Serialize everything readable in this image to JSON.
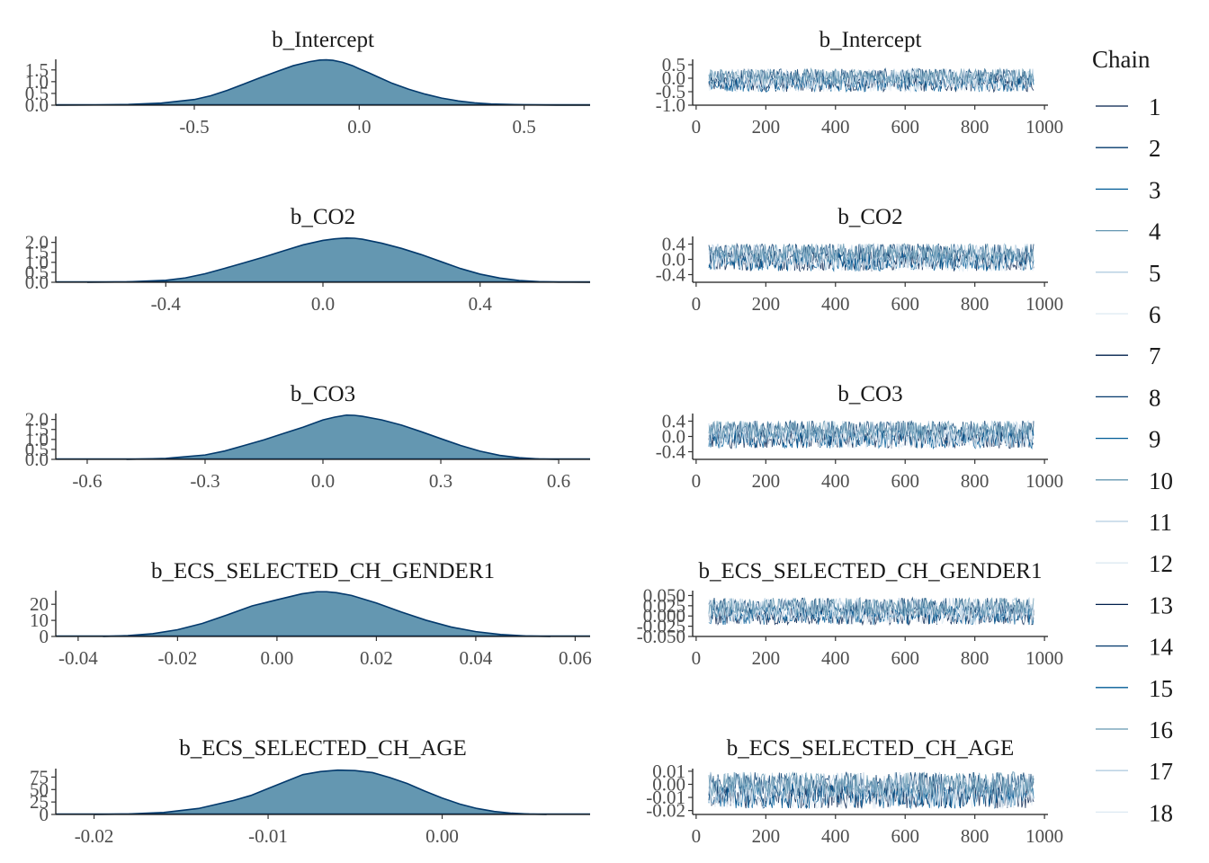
{
  "legend": {
    "title": "Chain",
    "items": [
      "1",
      "2",
      "3",
      "4",
      "5",
      "6",
      "7",
      "8",
      "9",
      "10",
      "11",
      "12",
      "13",
      "14",
      "15",
      "16",
      "17",
      "18"
    ],
    "colors": [
      "#011f4b",
      "#03396c",
      "#005b96",
      "#6497b1",
      "#b3cde0",
      "#dde9f2",
      "#011f4b",
      "#03396c",
      "#005b96",
      "#6497b1",
      "#b3cde0",
      "#dde9f2",
      "#011f4b",
      "#03396c",
      "#005b96",
      "#6497b1",
      "#b3cde0",
      "#dde9f2"
    ]
  },
  "colors": {
    "density_fill": "#6497b1",
    "density_line": "#03396c"
  },
  "chart_data": [
    {
      "type": "area",
      "panel": "density",
      "title": "b_Intercept",
      "xlim": [
        -0.92,
        0.7
      ],
      "ylim": [
        0,
        1.95
      ],
      "xticks": [
        -0.5,
        0.0,
        0.5
      ],
      "xtick_labels": [
        "-0.5",
        "0.0",
        "0.5"
      ],
      "yticks": [
        0,
        0.5,
        1.0,
        1.5
      ],
      "ytick_labels": [
        "0.0",
        "0.5",
        "1.0",
        "1.5"
      ],
      "x": [
        -0.92,
        -0.8,
        -0.7,
        -0.6,
        -0.5,
        -0.45,
        -0.4,
        -0.35,
        -0.3,
        -0.25,
        -0.2,
        -0.15,
        -0.12,
        -0.1,
        -0.08,
        -0.05,
        -0.02,
        0.0,
        0.03,
        0.06,
        0.1,
        0.15,
        0.2,
        0.25,
        0.3,
        0.35,
        0.4,
        0.5,
        0.6,
        0.7
      ],
      "y": [
        0.0,
        0.01,
        0.03,
        0.09,
        0.24,
        0.4,
        0.63,
        0.9,
        1.17,
        1.43,
        1.68,
        1.85,
        1.92,
        1.93,
        1.91,
        1.82,
        1.68,
        1.55,
        1.37,
        1.18,
        0.93,
        0.68,
        0.47,
        0.3,
        0.18,
        0.1,
        0.05,
        0.015,
        0.004,
        0.0
      ]
    },
    {
      "type": "line",
      "panel": "trace",
      "title": "b_Intercept",
      "xlim": [
        -10,
        1010
      ],
      "ylim": [
        -1.0,
        0.7
      ],
      "xticks": [
        0,
        200,
        400,
        600,
        800,
        1000
      ],
      "xtick_labels": [
        "0",
        "200",
        "400",
        "600",
        "800",
        "1000"
      ],
      "yticks": [
        -1.0,
        -0.5,
        0.0,
        0.5
      ],
      "ytick_labels": [
        "-1.0",
        "-0.5",
        "0.0",
        "0.5"
      ],
      "iterations": [
        1,
        1000
      ],
      "band": [
        -0.55,
        0.4
      ]
    },
    {
      "type": "area",
      "panel": "density",
      "title": "b_CO2",
      "xlim": [
        -0.68,
        0.68
      ],
      "ylim": [
        0,
        2.3
      ],
      "xticks": [
        -0.4,
        0.0,
        0.4
      ],
      "xtick_labels": [
        "-0.4",
        "0.0",
        "0.4"
      ],
      "yticks": [
        0,
        0.5,
        1.0,
        1.5,
        2.0
      ],
      "ytick_labels": [
        "0.0",
        "0.5",
        "1.0",
        "1.5",
        "2.0"
      ],
      "x": [
        -0.6,
        -0.5,
        -0.4,
        -0.35,
        -0.3,
        -0.25,
        -0.2,
        -0.15,
        -0.1,
        -0.05,
        0.0,
        0.03,
        0.06,
        0.08,
        0.1,
        0.15,
        0.2,
        0.25,
        0.3,
        0.35,
        0.4,
        0.45,
        0.5,
        0.55,
        0.6,
        0.68
      ],
      "y": [
        0.0,
        0.02,
        0.1,
        0.22,
        0.43,
        0.7,
        0.98,
        1.27,
        1.58,
        1.88,
        2.1,
        2.18,
        2.22,
        2.21,
        2.16,
        1.96,
        1.7,
        1.39,
        1.04,
        0.69,
        0.41,
        0.21,
        0.09,
        0.03,
        0.01,
        0.0
      ]
    },
    {
      "type": "line",
      "panel": "trace",
      "title": "b_CO2",
      "xlim": [
        -10,
        1010
      ],
      "ylim": [
        -0.6,
        0.6
      ],
      "xticks": [
        0,
        200,
        400,
        600,
        800,
        1000
      ],
      "xtick_labels": [
        "0",
        "200",
        "400",
        "600",
        "800",
        "1000"
      ],
      "yticks": [
        -0.4,
        0.0,
        0.4
      ],
      "ytick_labels": [
        "-0.4",
        "0.0",
        "0.4"
      ],
      "iterations": [
        1,
        1000
      ],
      "band": [
        -0.35,
        0.45
      ]
    },
    {
      "type": "area",
      "panel": "density",
      "title": "b_CO3",
      "xlim": [
        -0.68,
        0.68
      ],
      "ylim": [
        0,
        2.3
      ],
      "xticks": [
        -0.6,
        -0.3,
        0.0,
        0.3,
        0.6
      ],
      "xtick_labels": [
        "-0.6",
        "-0.3",
        "0.0",
        "0.3",
        "0.6"
      ],
      "yticks": [
        0,
        0.5,
        1.0,
        1.5,
        2.0
      ],
      "ytick_labels": [
        "0.0",
        "0.5",
        "1.0",
        "1.5",
        "2.0"
      ],
      "x": [
        -0.5,
        -0.4,
        -0.3,
        -0.25,
        -0.2,
        -0.15,
        -0.1,
        -0.05,
        0.0,
        0.03,
        0.06,
        0.08,
        0.1,
        0.15,
        0.2,
        0.25,
        0.3,
        0.35,
        0.4,
        0.45,
        0.5,
        0.55,
        0.6
      ],
      "y": [
        0.0,
        0.05,
        0.22,
        0.42,
        0.7,
        0.98,
        1.3,
        1.62,
        1.98,
        2.12,
        2.22,
        2.21,
        2.16,
        1.98,
        1.72,
        1.39,
        1.04,
        0.7,
        0.41,
        0.2,
        0.08,
        0.02,
        0.0
      ]
    },
    {
      "type": "line",
      "panel": "trace",
      "title": "b_CO3",
      "xlim": [
        -10,
        1010
      ],
      "ylim": [
        -0.6,
        0.6
      ],
      "xticks": [
        0,
        200,
        400,
        600,
        800,
        1000
      ],
      "xtick_labels": [
        "0",
        "200",
        "400",
        "600",
        "800",
        "1000"
      ],
      "yticks": [
        -0.4,
        0.0,
        0.4
      ],
      "ytick_labels": [
        "-0.4",
        "0.0",
        "0.4"
      ],
      "iterations": [
        1,
        1000
      ],
      "band": [
        -0.35,
        0.45
      ]
    },
    {
      "type": "area",
      "panel": "density",
      "title": "b_ECS_SELECTED_CH_GENDER1",
      "xlim": [
        -0.0445,
        0.063
      ],
      "ylim": [
        0,
        28.5
      ],
      "xticks": [
        -0.04,
        -0.02,
        0.0,
        0.02,
        0.04,
        0.06
      ],
      "xtick_labels": [
        "-0.04",
        "-0.02",
        "0.00",
        "0.02",
        "0.04",
        "0.06"
      ],
      "yticks": [
        0,
        10,
        20
      ],
      "ytick_labels": [
        "0",
        "10",
        "20"
      ],
      "x": [
        -0.035,
        -0.03,
        -0.025,
        -0.02,
        -0.015,
        -0.01,
        -0.005,
        0.0,
        0.005,
        0.008,
        0.01,
        0.012,
        0.015,
        0.02,
        0.025,
        0.03,
        0.035,
        0.04,
        0.045,
        0.05,
        0.055
      ],
      "y": [
        0.0,
        0.5,
        1.7,
        4.2,
        8.1,
        13.4,
        19.0,
        22.8,
        26.5,
        27.8,
        27.8,
        27.2,
        25.5,
        20.8,
        15.2,
        10.1,
        5.9,
        3.0,
        1.2,
        0.3,
        0.0
      ]
    },
    {
      "type": "line",
      "panel": "trace",
      "title": "b_ECS_SELECTED_CH_GENDER1",
      "xlim": [
        -10,
        1010
      ],
      "ylim": [
        -0.05,
        0.062
      ],
      "xticks": [
        0,
        200,
        400,
        600,
        800,
        1000
      ],
      "xtick_labels": [
        "0",
        "200",
        "400",
        "600",
        "800",
        "1000"
      ],
      "yticks": [
        -0.05,
        -0.025,
        0.0,
        0.025,
        0.05
      ],
      "ytick_labels": [
        "-0.050",
        "-0.025",
        "0.000",
        "0.025",
        "0.050"
      ],
      "iterations": [
        1,
        1000
      ],
      "band": [
        -0.025,
        0.048
      ]
    },
    {
      "type": "area",
      "panel": "density",
      "title": "b_ECS_SELECTED_CH_AGE",
      "xlim": [
        -0.0222,
        0.0085
      ],
      "ylim": [
        0,
        92
      ],
      "xticks": [
        -0.02,
        -0.01,
        0.0
      ],
      "xtick_labels": [
        "-0.02",
        "-0.01",
        "0.00"
      ],
      "yticks": [
        0,
        25,
        50,
        75
      ],
      "ytick_labels": [
        "0",
        "25",
        "50",
        "75"
      ],
      "x": [
        -0.02,
        -0.018,
        -0.016,
        -0.014,
        -0.012,
        -0.011,
        -0.01,
        -0.009,
        -0.008,
        -0.007,
        -0.006,
        -0.005,
        -0.004,
        -0.003,
        -0.002,
        -0.001,
        0.0,
        0.001,
        0.002,
        0.003,
        0.004,
        0.005,
        0.006
      ],
      "y": [
        0.0,
        1.0,
        4.0,
        12.0,
        28.0,
        38.0,
        52.0,
        66.0,
        80.0,
        86.0,
        89.0,
        88.0,
        84.0,
        74.0,
        62.0,
        47.0,
        33.0,
        21.0,
        12.0,
        6.0,
        2.5,
        0.8,
        0.0
      ]
    },
    {
      "type": "line",
      "panel": "trace",
      "title": "b_ECS_SELECTED_CH_AGE",
      "xlim": [
        -10,
        1010
      ],
      "ylim": [
        -0.023,
        0.012
      ],
      "xticks": [
        0,
        200,
        400,
        600,
        800,
        1000
      ],
      "xtick_labels": [
        "0",
        "200",
        "400",
        "600",
        "800",
        "1000"
      ],
      "yticks": [
        -0.02,
        -0.01,
        0.0,
        0.01
      ],
      "ytick_labels": [
        "-0.02",
        "-0.01",
        "0.00",
        "0.01"
      ],
      "iterations": [
        1,
        1000
      ],
      "band": [
        -0.02,
        0.011
      ]
    }
  ]
}
